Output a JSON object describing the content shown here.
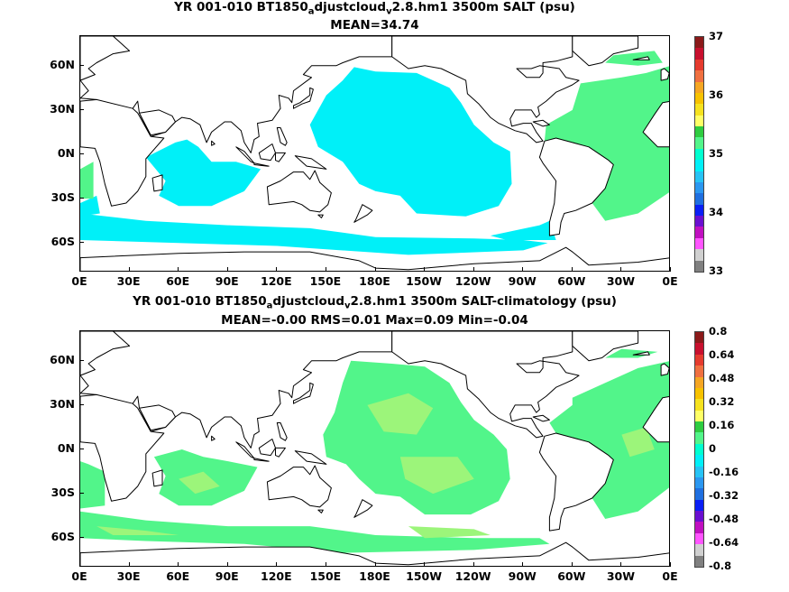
{
  "panels": [
    {
      "title_parts": [
        "YR 001-010 BT1850",
        "a",
        "djustcloud",
        "v",
        "2.8.hm1 3500m SALT (psu)"
      ],
      "subtitle": "MEAN=34.74",
      "lat_labels": [
        "60N",
        "30N",
        "0N",
        "30S",
        "60S"
      ],
      "lon_labels": [
        "0E",
        "30E",
        "60E",
        "90E",
        "120E",
        "150E",
        "180E",
        "150W",
        "120W",
        "90W",
        "60W",
        "30W",
        "0E"
      ],
      "colorbar": {
        "labels": [
          "37",
          "36",
          "35",
          "34",
          "33"
        ],
        "colors": [
          "#8b1a1a",
          "#c8102e",
          "#e53b2e",
          "#f07040",
          "#f5a623",
          "#f7c200",
          "#f6e21f",
          "#ffff66",
          "#2ecc40",
          "#52f58a",
          "#00ffd0",
          "#00f0f8",
          "#27c3f5",
          "#2b97f0",
          "#1f6fe0",
          "#0a1ff5",
          "#6a0fd0",
          "#c010c0",
          "#ff55ff",
          "#d0d0d0",
          "#808080"
        ],
        "values": [
          37,
          36,
          35,
          34,
          33
        ]
      },
      "field": {
        "dominant_color": "#00f0f8",
        "secondary_color": "#52f58a"
      }
    },
    {
      "title_parts": [
        "YR 001-010 BT1850",
        "a",
        "djustcloud",
        "v",
        "2.8.hm1 3500m SALT-climatology (psu)"
      ],
      "subtitle": "MEAN=-0.00   RMS=0.01   Max=0.09   Min=-0.04",
      "lat_labels": [
        "60N",
        "30N",
        "0N",
        "30S",
        "60S"
      ],
      "lon_labels": [
        "0E",
        "30E",
        "60E",
        "90E",
        "120E",
        "150E",
        "180E",
        "150W",
        "120W",
        "90W",
        "60W",
        "30W",
        "0E"
      ],
      "colorbar": {
        "labels": [
          "0.8",
          "0.64",
          "0.48",
          "0.32",
          "0.16",
          "0",
          "-0.16",
          "-0.32",
          "-0.48",
          "-0.64",
          "-0.8"
        ],
        "colors": [
          "#8b1a1a",
          "#c8102e",
          "#e53b2e",
          "#f07040",
          "#f5a623",
          "#f7c200",
          "#f6e21f",
          "#ffff66",
          "#2ecc40",
          "#52f58a",
          "#00ffd0",
          "#00f0f8",
          "#27c3f5",
          "#2b97f0",
          "#1f6fe0",
          "#0a1ff5",
          "#6a0fd0",
          "#c010c0",
          "#ff55ff",
          "#d0d0d0",
          "#808080"
        ],
        "values": [
          0.8,
          0.64,
          0.48,
          0.32,
          0.16,
          0,
          -0.16,
          -0.32,
          -0.48,
          -0.64,
          -0.8
        ]
      },
      "field": {
        "dominant_color": "#52f58a",
        "secondary_color": "#9cf57a"
      }
    }
  ]
}
